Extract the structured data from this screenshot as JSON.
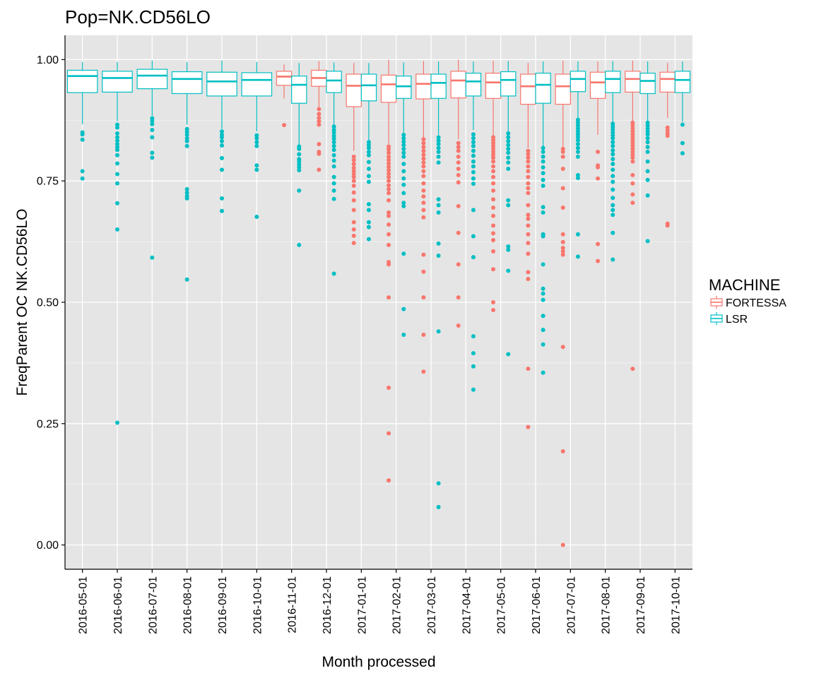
{
  "chart_data": {
    "type": "boxplot",
    "title": "Pop=NK.CD56LO",
    "xlabel": "Month processed",
    "ylabel": "FreqParent OC  NK.CD56LO",
    "ylim": [
      -0.05,
      1.05
    ],
    "yticks": [
      0.0,
      0.25,
      0.5,
      0.75,
      1.0
    ],
    "ytick_labels": [
      "0.00",
      "0.25",
      "0.50",
      "0.75",
      "1.00"
    ],
    "grid": true,
    "legend": {
      "title": "MACHINE",
      "position": "right",
      "entries": [
        "FORTESSA",
        "LSR"
      ]
    },
    "colors": {
      "FORTESSA": "#F8766D",
      "LSR": "#00BFC4",
      "panel": "#E5E5E5",
      "grid": "#FFFFFF"
    },
    "categories": [
      "2016-05-01",
      "2016-06-01",
      "2016-07-01",
      "2016-08-01",
      "2016-09-01",
      "2016-10-01",
      "2016-11-01",
      "2016-12-01",
      "2017-01-01",
      "2017-02-01",
      "2017-03-01",
      "2017-04-01",
      "2017-05-01",
      "2017-06-01",
      "2017-07-01",
      "2017-08-01",
      "2017-09-01",
      "2017-10-01"
    ],
    "boxes": [
      {
        "x": "2016-05-01",
        "machine": "LSR",
        "lw": 0.867,
        "q1": 0.932,
        "median": 0.966,
        "q3": 0.978,
        "uw": 0.995,
        "outliers": [
          0.85,
          0.846,
          0.835,
          0.77,
          0.755
        ]
      },
      {
        "x": "2016-06-01",
        "machine": "LSR",
        "lw": 0.873,
        "q1": 0.933,
        "median": 0.962,
        "q3": 0.976,
        "uw": 0.995,
        "outliers": [
          0.866,
          0.86,
          0.848,
          0.84,
          0.833,
          0.826,
          0.82,
          0.814,
          0.803,
          0.786,
          0.764,
          0.745,
          0.704,
          0.65,
          0.252
        ]
      },
      {
        "x": "2016-07-01",
        "machine": "LSR",
        "lw": 0.884,
        "q1": 0.94,
        "median": 0.967,
        "q3": 0.98,
        "uw": 0.998,
        "outliers": [
          0.879,
          0.874,
          0.867,
          0.855,
          0.84,
          0.808,
          0.798,
          0.592
        ]
      },
      {
        "x": "2016-08-01",
        "machine": "LSR",
        "lw": 0.866,
        "q1": 0.93,
        "median": 0.96,
        "q3": 0.975,
        "uw": 0.995,
        "outliers": [
          0.857,
          0.851,
          0.845,
          0.838,
          0.832,
          0.822,
          0.733,
          0.726,
          0.719,
          0.714,
          0.547
        ]
      },
      {
        "x": "2016-09-01",
        "machine": "LSR",
        "lw": 0.857,
        "q1": 0.925,
        "median": 0.955,
        "q3": 0.974,
        "uw": 0.998,
        "outliers": [
          0.852,
          0.845,
          0.84,
          0.832,
          0.823,
          0.797,
          0.773,
          0.714,
          0.688
        ]
      },
      {
        "x": "2016-10-01",
        "machine": "LSR",
        "lw": 0.852,
        "q1": 0.925,
        "median": 0.958,
        "q3": 0.973,
        "uw": 0.995,
        "outliers": [
          0.844,
          0.838,
          0.83,
          0.822,
          0.782,
          0.773,
          0.676
        ]
      },
      {
        "x": "2016-11-01",
        "machine": "FORTESSA",
        "lw": 0.92,
        "q1": 0.947,
        "median": 0.965,
        "q3": 0.976,
        "uw": 0.99,
        "outliers": [
          0.865
        ]
      },
      {
        "x": "2016-11-01",
        "machine": "LSR",
        "lw": 0.823,
        "q1": 0.91,
        "median": 0.948,
        "q3": 0.966,
        "uw": 0.993,
        "outliers": [
          0.821,
          0.816,
          0.805,
          0.795,
          0.79,
          0.784,
          0.778,
          0.772,
          0.73,
          0.618
        ]
      },
      {
        "x": "2016-12-01",
        "machine": "FORTESSA",
        "lw": 0.9,
        "q1": 0.945,
        "median": 0.962,
        "q3": 0.978,
        "uw": 0.997,
        "outliers": [
          0.898,
          0.888,
          0.88,
          0.873,
          0.866,
          0.826,
          0.81,
          0.806,
          0.773
        ]
      },
      {
        "x": "2016-12-01",
        "machine": "LSR",
        "lw": 0.866,
        "q1": 0.932,
        "median": 0.957,
        "q3": 0.976,
        "uw": 0.994,
        "outliers": [
          0.862,
          0.855,
          0.85,
          0.843,
          0.837,
          0.83,
          0.822,
          0.814,
          0.803,
          0.792,
          0.78,
          0.758,
          0.745,
          0.73,
          0.713,
          0.559
        ]
      },
      {
        "x": "2017-01-01",
        "machine": "FORTESSA",
        "lw": 0.812,
        "q1": 0.903,
        "median": 0.946,
        "q3": 0.97,
        "uw": 0.993,
        "outliers": [
          0.8,
          0.793,
          0.785,
          0.777,
          0.77,
          0.764,
          0.758,
          0.75,
          0.74,
          0.726,
          0.71,
          0.69,
          0.665,
          0.65,
          0.637,
          0.622
        ]
      },
      {
        "x": "2017-01-01",
        "machine": "LSR",
        "lw": 0.834,
        "q1": 0.915,
        "median": 0.947,
        "q3": 0.97,
        "uw": 0.993,
        "outliers": [
          0.83,
          0.824,
          0.818,
          0.81,
          0.803,
          0.789,
          0.775,
          0.76,
          0.748,
          0.702,
          0.69,
          0.665,
          0.655,
          0.63
        ]
      },
      {
        "x": "2017-02-01",
        "machine": "FORTESSA",
        "lw": 0.826,
        "q1": 0.912,
        "median": 0.949,
        "q3": 0.968,
        "uw": 1.0,
        "outliers": [
          0.821,
          0.815,
          0.808,
          0.8,
          0.793,
          0.786,
          0.779,
          0.772,
          0.765,
          0.758,
          0.75,
          0.741,
          0.733,
          0.725,
          0.71,
          0.685,
          0.678,
          0.66,
          0.64,
          0.618,
          0.583,
          0.578,
          0.51,
          0.324,
          0.23,
          0.133
        ]
      },
      {
        "x": "2017-02-01",
        "machine": "LSR",
        "lw": 0.85,
        "q1": 0.92,
        "median": 0.945,
        "q3": 0.966,
        "uw": 0.994,
        "outliers": [
          0.845,
          0.838,
          0.831,
          0.824,
          0.816,
          0.808,
          0.8,
          0.785,
          0.77,
          0.755,
          0.742,
          0.725,
          0.705,
          0.698,
          0.6,
          0.486,
          0.433
        ]
      },
      {
        "x": "2017-03-01",
        "machine": "FORTESSA",
        "lw": 0.84,
        "q1": 0.919,
        "median": 0.95,
        "q3": 0.97,
        "uw": 0.997,
        "outliers": [
          0.836,
          0.828,
          0.82,
          0.812,
          0.804,
          0.796,
          0.788,
          0.78,
          0.77,
          0.76,
          0.745,
          0.73,
          0.718,
          0.705,
          0.69,
          0.675,
          0.598,
          0.563,
          0.51,
          0.433,
          0.357
        ]
      },
      {
        "x": "2017-03-01",
        "machine": "LSR",
        "lw": 0.845,
        "q1": 0.92,
        "median": 0.952,
        "q3": 0.97,
        "uw": 0.996,
        "outliers": [
          0.84,
          0.833,
          0.826,
          0.818,
          0.81,
          0.8,
          0.788,
          0.712,
          0.7,
          0.685,
          0.621,
          0.596,
          0.44,
          0.127,
          0.078
        ]
      },
      {
        "x": "2017-04-01",
        "machine": "FORTESSA",
        "lw": 0.836,
        "q1": 0.921,
        "median": 0.957,
        "q3": 0.976,
        "uw": 1.0,
        "outliers": [
          0.828,
          0.82,
          0.812,
          0.8,
          0.788,
          0.775,
          0.762,
          0.747,
          0.698,
          0.643,
          0.578,
          0.51,
          0.452
        ]
      },
      {
        "x": "2017-04-01",
        "machine": "LSR",
        "lw": 0.855,
        "q1": 0.925,
        "median": 0.955,
        "q3": 0.972,
        "uw": 0.996,
        "outliers": [
          0.846,
          0.838,
          0.83,
          0.822,
          0.812,
          0.802,
          0.79,
          0.78,
          0.768,
          0.755,
          0.744,
          0.69,
          0.636,
          0.593,
          0.43,
          0.395,
          0.368,
          0.32
        ]
      },
      {
        "x": "2017-05-01",
        "machine": "FORTESSA",
        "lw": 0.844,
        "q1": 0.92,
        "median": 0.953,
        "q3": 0.972,
        "uw": 0.998,
        "outliers": [
          0.84,
          0.834,
          0.828,
          0.822,
          0.816,
          0.81,
          0.804,
          0.798,
          0.79,
          0.78,
          0.77,
          0.758,
          0.745,
          0.73,
          0.712,
          0.695,
          0.678,
          0.658,
          0.642,
          0.628,
          0.605,
          0.568,
          0.5,
          0.484
        ]
      },
      {
        "x": "2017-05-01",
        "machine": "LSR",
        "lw": 0.852,
        "q1": 0.925,
        "median": 0.958,
        "q3": 0.975,
        "uw": 0.997,
        "outliers": [
          0.848,
          0.84,
          0.832,
          0.824,
          0.816,
          0.808,
          0.798,
          0.788,
          0.775,
          0.71,
          0.7,
          0.615,
          0.608,
          0.565,
          0.393
        ]
      },
      {
        "x": "2017-06-01",
        "machine": "FORTESSA",
        "lw": 0.818,
        "q1": 0.908,
        "median": 0.945,
        "q3": 0.97,
        "uw": 0.993,
        "outliers": [
          0.812,
          0.805,
          0.798,
          0.79,
          0.78,
          0.77,
          0.758,
          0.745,
          0.735,
          0.725,
          0.7,
          0.68,
          0.672,
          0.658,
          0.64,
          0.622,
          0.6,
          0.562,
          0.548,
          0.363,
          0.243
        ]
      },
      {
        "x": "2017-06-01",
        "machine": "LSR",
        "lw": 0.82,
        "q1": 0.91,
        "median": 0.948,
        "q3": 0.972,
        "uw": 0.996,
        "outliers": [
          0.818,
          0.81,
          0.8,
          0.79,
          0.778,
          0.766,
          0.752,
          0.74,
          0.696,
          0.685,
          0.64,
          0.636,
          0.578,
          0.528,
          0.518,
          0.505,
          0.472,
          0.443,
          0.413,
          0.355
        ]
      },
      {
        "x": "2017-07-01",
        "machine": "FORTESSA",
        "lw": 0.82,
        "q1": 0.908,
        "median": 0.945,
        "q3": 0.97,
        "uw": 0.998,
        "outliers": [
          0.816,
          0.81,
          0.8,
          0.775,
          0.735,
          0.695,
          0.64,
          0.624,
          0.612,
          0.605,
          0.598,
          0.408,
          0.193,
          0.0
        ]
      },
      {
        "x": "2017-07-01",
        "machine": "LSR",
        "lw": 0.88,
        "q1": 0.934,
        "median": 0.96,
        "q3": 0.976,
        "uw": 0.996,
        "outliers": [
          0.876,
          0.87,
          0.864,
          0.858,
          0.852,
          0.846,
          0.84,
          0.834,
          0.826,
          0.818,
          0.81,
          0.8,
          0.762,
          0.756,
          0.64,
          0.594
        ]
      },
      {
        "x": "2017-08-01",
        "machine": "FORTESSA",
        "lw": 0.845,
        "q1": 0.92,
        "median": 0.953,
        "q3": 0.974,
        "uw": 0.996,
        "outliers": [
          0.81,
          0.782,
          0.778,
          0.755,
          0.62,
          0.585
        ]
      },
      {
        "x": "2017-08-01",
        "machine": "LSR",
        "lw": 0.872,
        "q1": 0.932,
        "median": 0.96,
        "q3": 0.976,
        "uw": 0.997,
        "outliers": [
          0.868,
          0.862,
          0.856,
          0.85,
          0.844,
          0.838,
          0.83,
          0.822,
          0.813,
          0.805,
          0.795,
          0.785,
          0.773,
          0.76,
          0.748,
          0.732,
          0.715,
          0.7,
          0.69,
          0.68,
          0.643,
          0.588
        ]
      },
      {
        "x": "2017-09-01",
        "machine": "FORTESSA",
        "lw": 0.873,
        "q1": 0.933,
        "median": 0.96,
        "q3": 0.976,
        "uw": 0.998,
        "outliers": [
          0.87,
          0.864,
          0.858,
          0.852,
          0.846,
          0.84,
          0.834,
          0.828,
          0.822,
          0.816,
          0.81,
          0.804,
          0.798,
          0.79,
          0.762,
          0.745,
          0.722,
          0.705,
          0.363
        ]
      },
      {
        "x": "2017-09-01",
        "machine": "LSR",
        "lw": 0.874,
        "q1": 0.93,
        "median": 0.956,
        "q3": 0.972,
        "uw": 0.996,
        "outliers": [
          0.87,
          0.864,
          0.858,
          0.852,
          0.846,
          0.838,
          0.83,
          0.82,
          0.81,
          0.79,
          0.77,
          0.752,
          0.72,
          0.626
        ]
      },
      {
        "x": "2017-10-01",
        "machine": "FORTESSA",
        "lw": 0.88,
        "q1": 0.933,
        "median": 0.96,
        "q3": 0.974,
        "uw": 0.993,
        "outliers": [
          0.86,
          0.854,
          0.848,
          0.843,
          0.662,
          0.658
        ]
      },
      {
        "x": "2017-10-01",
        "machine": "LSR",
        "lw": 0.872,
        "q1": 0.932,
        "median": 0.958,
        "q3": 0.976,
        "uw": 0.996,
        "outliers": [
          0.866,
          0.828,
          0.807
        ]
      }
    ]
  }
}
